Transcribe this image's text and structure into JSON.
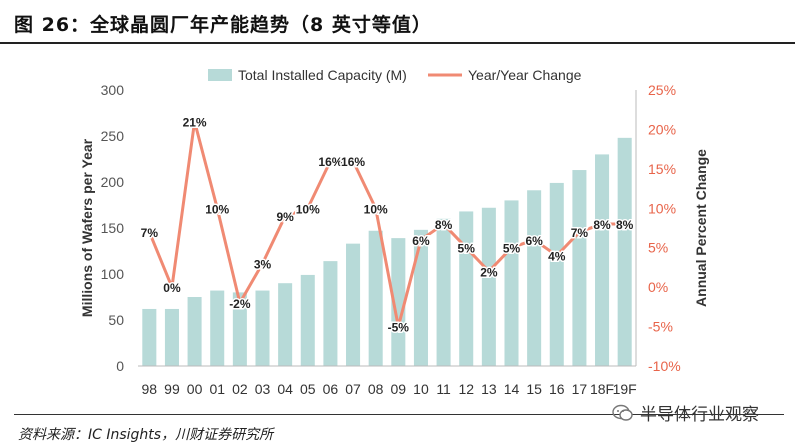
{
  "header": {
    "title": "图 26：全球晶圆厂年产能趋势（8 英寸等值）"
  },
  "footer": {
    "source": "资料来源：IC Insights，川财证券研究所",
    "watermark": "半导体行业观察"
  },
  "colors": {
    "bar": "#b7dad8",
    "line": "#f08a73",
    "right_axis": "#e8644a",
    "left_axis": "#555555"
  },
  "chart_data": {
    "type": "bar",
    "categories": [
      "98",
      "99",
      "00",
      "01",
      "02",
      "03",
      "04",
      "05",
      "06",
      "07",
      "08",
      "09",
      "10",
      "11",
      "12",
      "13",
      "14",
      "15",
      "16",
      "17",
      "18F",
      "19F"
    ],
    "series": [
      {
        "name": "Total Installed Capacity (M)",
        "type": "bar",
        "axis": "left",
        "values": [
          62,
          62,
          75,
          82,
          80,
          82,
          90,
          99,
          114,
          133,
          147,
          139,
          148,
          160,
          168,
          172,
          180,
          191,
          199,
          213,
          230,
          248
        ]
      },
      {
        "name": "Year/Year Change",
        "type": "line",
        "axis": "right",
        "values": [
          7,
          0,
          21,
          10,
          -2,
          3,
          9,
          10,
          16,
          16,
          10,
          -5,
          6,
          8,
          5,
          2,
          5,
          6,
          4,
          7,
          8,
          8
        ],
        "labels": [
          "7%",
          "0%",
          "21%",
          "10%",
          "-2%",
          "3%",
          "9%",
          "10%",
          "16%",
          "16%",
          "10%",
          "-5%",
          "6%",
          "8%",
          "5%",
          "2%",
          "5%",
          "6%",
          "4%",
          "7%",
          "8%",
          "8%"
        ]
      }
    ],
    "ylabel": "Millions of Wafers per Year",
    "y2label": "Annual Percent Change",
    "ylim": [
      0,
      300
    ],
    "yticks": [
      "0",
      "50",
      "100",
      "150",
      "200",
      "250",
      "300"
    ],
    "y2lim": [
      -10,
      25
    ],
    "y2ticks": [
      "-10%",
      "-5%",
      "0%",
      "5%",
      "10%",
      "15%",
      "20%",
      "25%"
    ],
    "legend": [
      "Total Installed Capacity (M)",
      "Year/Year Change"
    ],
    "legend_position": "top-center"
  }
}
